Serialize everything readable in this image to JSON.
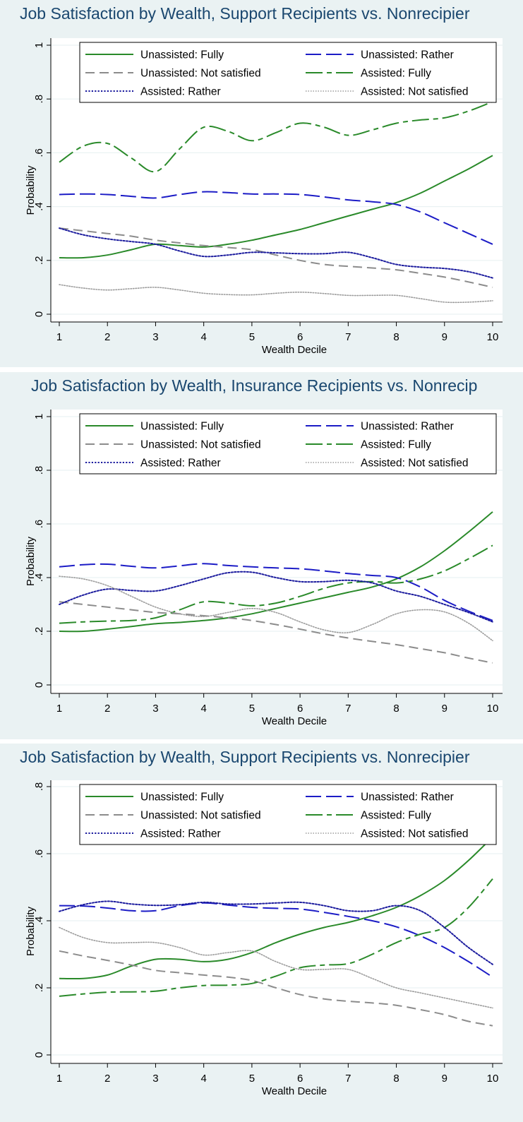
{
  "colors": {
    "panel_bg": "#eaf2f3",
    "plot_bg": "#ffffff",
    "grid": "#eaf2f3",
    "title": "#1a476f",
    "green": "#2a8a2a",
    "blue": "#1c1cc6",
    "navy": "#1c1c9e",
    "gray": "#8c8c8c",
    "lightgray": "#9c9c9c"
  },
  "chart_data": [
    {
      "type": "line",
      "title": "Job Satisfaction by Wealth, Support Recipients vs. Nonrecipier",
      "xlabel": "Wealth Decile",
      "ylabel": "Probability",
      "x": [
        1,
        1.5,
        2,
        2.5,
        3,
        3.5,
        4,
        4.5,
        5,
        5.5,
        6,
        6.5,
        7,
        7.5,
        8,
        8.5,
        9,
        9.5,
        10
      ],
      "xticks": [
        "1",
        "2",
        "3",
        "4",
        "5",
        "6",
        "7",
        "8",
        "9",
        "10"
      ],
      "ylim": [
        0,
        1
      ],
      "yticks": [
        "0",
        ".2",
        ".4",
        ".6",
        ".8",
        "1"
      ],
      "grid": true,
      "legend_position": "top",
      "series": [
        {
          "name": "Unassisted: Fully",
          "color": "green",
          "dash": "solid",
          "width": 2,
          "values": [
            0.21,
            0.21,
            0.22,
            0.24,
            0.26,
            0.255,
            0.25,
            0.26,
            0.275,
            0.295,
            0.315,
            0.34,
            0.365,
            0.39,
            0.415,
            0.45,
            0.495,
            0.54,
            0.59
          ]
        },
        {
          "name": "Unassisted: Rather",
          "color": "blue",
          "dash": "long",
          "width": 2,
          "values": [
            0.445,
            0.447,
            0.445,
            0.438,
            0.432,
            0.445,
            0.455,
            0.452,
            0.447,
            0.447,
            0.445,
            0.436,
            0.425,
            0.418,
            0.408,
            0.38,
            0.34,
            0.3,
            0.26
          ]
        },
        {
          "name": "Unassisted: Not satisfied",
          "color": "gray",
          "dash": "medium",
          "width": 2,
          "values": [
            0.32,
            0.31,
            0.3,
            0.29,
            0.275,
            0.265,
            0.255,
            0.248,
            0.24,
            0.22,
            0.2,
            0.185,
            0.178,
            0.172,
            0.165,
            0.152,
            0.138,
            0.12,
            0.1
          ]
        },
        {
          "name": "Assisted: Fully",
          "color": "green",
          "dash": "longdash",
          "width": 2,
          "values": [
            0.565,
            0.625,
            0.635,
            0.58,
            0.53,
            0.615,
            0.695,
            0.68,
            0.645,
            0.675,
            0.71,
            0.695,
            0.665,
            0.685,
            0.71,
            0.722,
            0.73,
            0.755,
            0.79
          ]
        },
        {
          "name": "Assisted: Rather",
          "color": "navy",
          "dash": "dot",
          "width": 2,
          "values": [
            0.32,
            0.295,
            0.28,
            0.27,
            0.26,
            0.235,
            0.215,
            0.22,
            0.23,
            0.228,
            0.225,
            0.225,
            0.23,
            0.21,
            0.185,
            0.175,
            0.17,
            0.158,
            0.135
          ]
        },
        {
          "name": "Assisted: Not satisfied",
          "color": "lightgray",
          "dash": "finedot",
          "width": 1.6,
          "values": [
            0.11,
            0.097,
            0.09,
            0.095,
            0.1,
            0.09,
            0.078,
            0.073,
            0.072,
            0.078,
            0.082,
            0.077,
            0.07,
            0.07,
            0.07,
            0.058,
            0.045,
            0.045,
            0.05
          ]
        }
      ]
    },
    {
      "type": "line",
      "title": "Job Satisfaction by Wealth, Insurance Recipients vs. Nonrecip",
      "xlabel": "Wealth Decile",
      "ylabel": "Probability",
      "x": [
        1,
        1.5,
        2,
        2.5,
        3,
        3.5,
        4,
        4.5,
        5,
        5.5,
        6,
        6.5,
        7,
        7.5,
        8,
        8.5,
        9,
        9.5,
        10
      ],
      "xticks": [
        "1",
        "2",
        "3",
        "4",
        "5",
        "6",
        "7",
        "8",
        "9",
        "10"
      ],
      "ylim": [
        0,
        1
      ],
      "yticks": [
        "0",
        ".2",
        ".4",
        ".6",
        ".8",
        "1"
      ],
      "grid": true,
      "legend_position": "top",
      "series": [
        {
          "name": "Unassisted: Fully",
          "color": "green",
          "dash": "solid",
          "width": 2,
          "values": [
            0.2,
            0.2,
            0.208,
            0.218,
            0.228,
            0.233,
            0.24,
            0.25,
            0.265,
            0.285,
            0.305,
            0.325,
            0.345,
            0.365,
            0.395,
            0.44,
            0.5,
            0.57,
            0.645
          ]
        },
        {
          "name": "Unassisted: Rather",
          "color": "blue",
          "dash": "long",
          "width": 2,
          "values": [
            0.44,
            0.448,
            0.45,
            0.442,
            0.436,
            0.444,
            0.452,
            0.445,
            0.44,
            0.436,
            0.433,
            0.425,
            0.415,
            0.408,
            0.4,
            0.365,
            0.315,
            0.275,
            0.24
          ]
        },
        {
          "name": "Unassisted: Not satisfied",
          "color": "gray",
          "dash": "medium",
          "width": 2,
          "values": [
            0.31,
            0.3,
            0.29,
            0.28,
            0.27,
            0.265,
            0.258,
            0.25,
            0.24,
            0.225,
            0.208,
            0.19,
            0.175,
            0.162,
            0.15,
            0.135,
            0.12,
            0.1,
            0.082
          ]
        },
        {
          "name": "Assisted: Fully",
          "color": "green",
          "dash": "longdash",
          "width": 2,
          "values": [
            0.23,
            0.235,
            0.238,
            0.24,
            0.25,
            0.28,
            0.31,
            0.305,
            0.295,
            0.305,
            0.33,
            0.36,
            0.38,
            0.385,
            0.38,
            0.395,
            0.425,
            0.47,
            0.52
          ]
        },
        {
          "name": "Assisted: Rather",
          "color": "navy",
          "dash": "dot",
          "width": 2,
          "values": [
            0.3,
            0.335,
            0.357,
            0.352,
            0.35,
            0.37,
            0.395,
            0.418,
            0.42,
            0.4,
            0.385,
            0.385,
            0.39,
            0.38,
            0.35,
            0.33,
            0.3,
            0.27,
            0.235
          ]
        },
        {
          "name": "Assisted: Not satisfied",
          "color": "lightgray",
          "dash": "finedot",
          "width": 1.6,
          "values": [
            0.405,
            0.395,
            0.37,
            0.33,
            0.29,
            0.265,
            0.255,
            0.27,
            0.285,
            0.27,
            0.235,
            0.205,
            0.195,
            0.225,
            0.265,
            0.28,
            0.272,
            0.23,
            0.165
          ]
        }
      ]
    },
    {
      "type": "line",
      "title": "Job Satisfaction by Wealth, Support Recipients vs. Nonrecipier",
      "xlabel": "Wealth Decile",
      "ylabel": "Probability",
      "x": [
        1,
        1.5,
        2,
        2.5,
        3,
        3.5,
        4,
        4.5,
        5,
        5.5,
        6,
        6.5,
        7,
        7.5,
        8,
        8.5,
        9,
        9.5,
        10
      ],
      "xticks": [
        "1",
        "2",
        "3",
        "4",
        "5",
        "6",
        "7",
        "8",
        "9",
        "10"
      ],
      "ylim": [
        0,
        0.8
      ],
      "yticks": [
        "0",
        ".2",
        ".4",
        ".6",
        ".8"
      ],
      "grid": true,
      "legend_position": "top",
      "series": [
        {
          "name": "Unassisted: Fully",
          "color": "green",
          "dash": "solid",
          "width": 2,
          "values": [
            0.228,
            0.228,
            0.238,
            0.265,
            0.285,
            0.285,
            0.278,
            0.285,
            0.305,
            0.335,
            0.36,
            0.38,
            0.395,
            0.415,
            0.44,
            0.475,
            0.52,
            0.58,
            0.65
          ]
        },
        {
          "name": "Unassisted: Rather",
          "color": "blue",
          "dash": "long",
          "width": 2,
          "values": [
            0.445,
            0.444,
            0.438,
            0.43,
            0.43,
            0.445,
            0.453,
            0.447,
            0.44,
            0.437,
            0.435,
            0.425,
            0.413,
            0.4,
            0.382,
            0.355,
            0.32,
            0.278,
            0.232
          ]
        },
        {
          "name": "Unassisted: Not satisfied",
          "color": "gray",
          "dash": "medium",
          "width": 2,
          "values": [
            0.31,
            0.295,
            0.282,
            0.268,
            0.252,
            0.245,
            0.238,
            0.232,
            0.222,
            0.2,
            0.18,
            0.167,
            0.16,
            0.155,
            0.148,
            0.135,
            0.12,
            0.1,
            0.087
          ]
        },
        {
          "name": "Assisted: Fully",
          "color": "green",
          "dash": "longdash",
          "width": 2,
          "values": [
            0.175,
            0.182,
            0.187,
            0.188,
            0.19,
            0.2,
            0.207,
            0.208,
            0.213,
            0.235,
            0.26,
            0.268,
            0.272,
            0.3,
            0.335,
            0.36,
            0.38,
            0.44,
            0.525
          ]
        },
        {
          "name": "Assisted: Rather",
          "color": "navy",
          "dash": "dot",
          "width": 2,
          "values": [
            0.428,
            0.448,
            0.458,
            0.45,
            0.446,
            0.448,
            0.455,
            0.45,
            0.45,
            0.453,
            0.455,
            0.445,
            0.43,
            0.43,
            0.445,
            0.43,
            0.38,
            0.32,
            0.27
          ]
        },
        {
          "name": "Assisted: Not satisfied",
          "color": "lightgray",
          "dash": "finedot",
          "width": 1.6,
          "values": [
            0.38,
            0.35,
            0.335,
            0.335,
            0.335,
            0.32,
            0.298,
            0.305,
            0.31,
            0.278,
            0.255,
            0.255,
            0.255,
            0.228,
            0.2,
            0.185,
            0.17,
            0.155,
            0.14
          ]
        }
      ]
    }
  ]
}
